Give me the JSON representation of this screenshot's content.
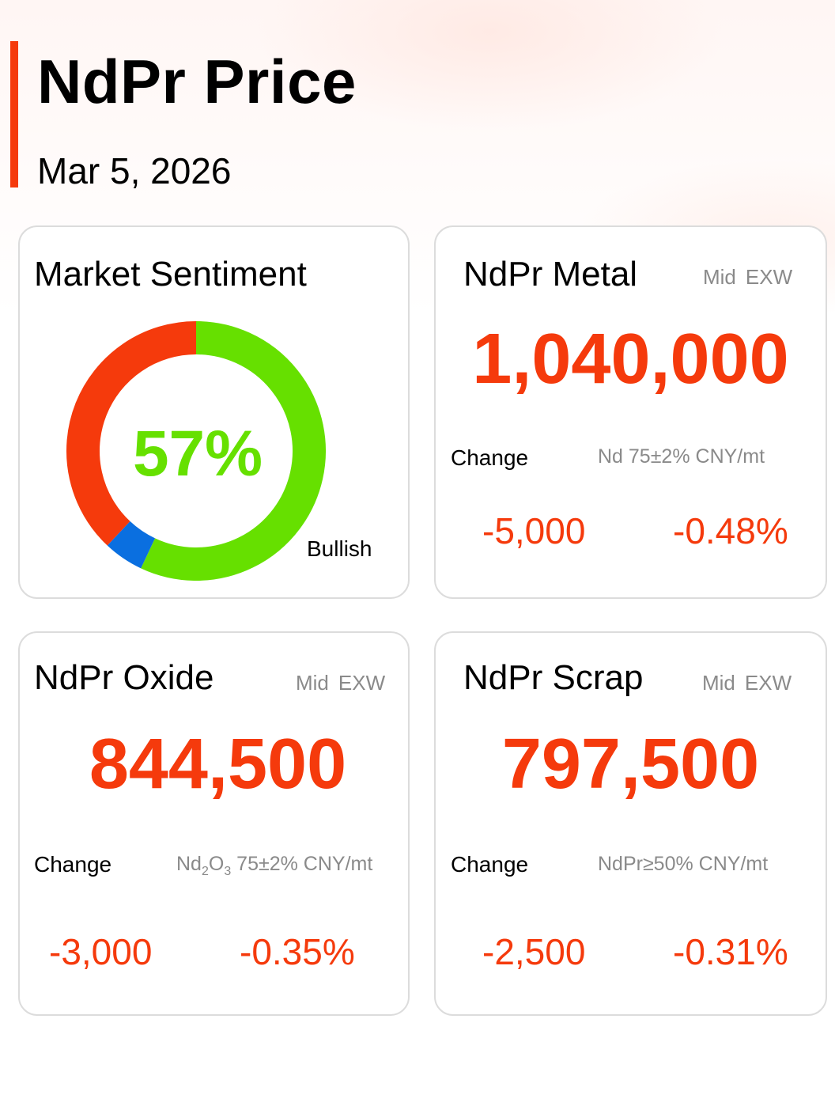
{
  "header": {
    "title": "NdPr Price",
    "date": "Mar 5, 2026"
  },
  "sentiment": {
    "title": "Market Sentiment",
    "percent_label": "57%",
    "legend_label": "Bullish",
    "shares": {
      "bullish": 57,
      "neutral": 5,
      "bearish": 38
    },
    "colors": {
      "bullish": "#66e000",
      "neutral": "#0a6fe0",
      "bearish": "#f53a0c"
    }
  },
  "cards": {
    "metal": {
      "title": "NdPr Metal",
      "meta": [
        "Mid",
        "EXW"
      ],
      "price": "1,040,000",
      "change_label": "Change",
      "spec": "Nd 75±2% CNY/mt",
      "change_abs": "-5,000",
      "change_pct": "-0.48%"
    },
    "oxide": {
      "title": "NdPr Oxide",
      "meta": [
        "Mid",
        "EXW"
      ],
      "price": "844,500",
      "change_label": "Change",
      "spec_parts": [
        "Nd",
        "2",
        "O",
        "3",
        " 75±2% CNY/mt"
      ],
      "change_abs": "-3,000",
      "change_pct": "-0.35%"
    },
    "scrap": {
      "title": "NdPr Scrap",
      "meta": [
        "Mid",
        "EXW"
      ],
      "price": "797,500",
      "change_label": "Change",
      "spec": "NdPr≥50% CNY/mt",
      "change_abs": "-2,500",
      "change_pct": "-0.31%"
    }
  },
  "colors": {
    "accent": "#f53a0c",
    "bullish": "#66e000",
    "muted": "#8a8a8a"
  }
}
